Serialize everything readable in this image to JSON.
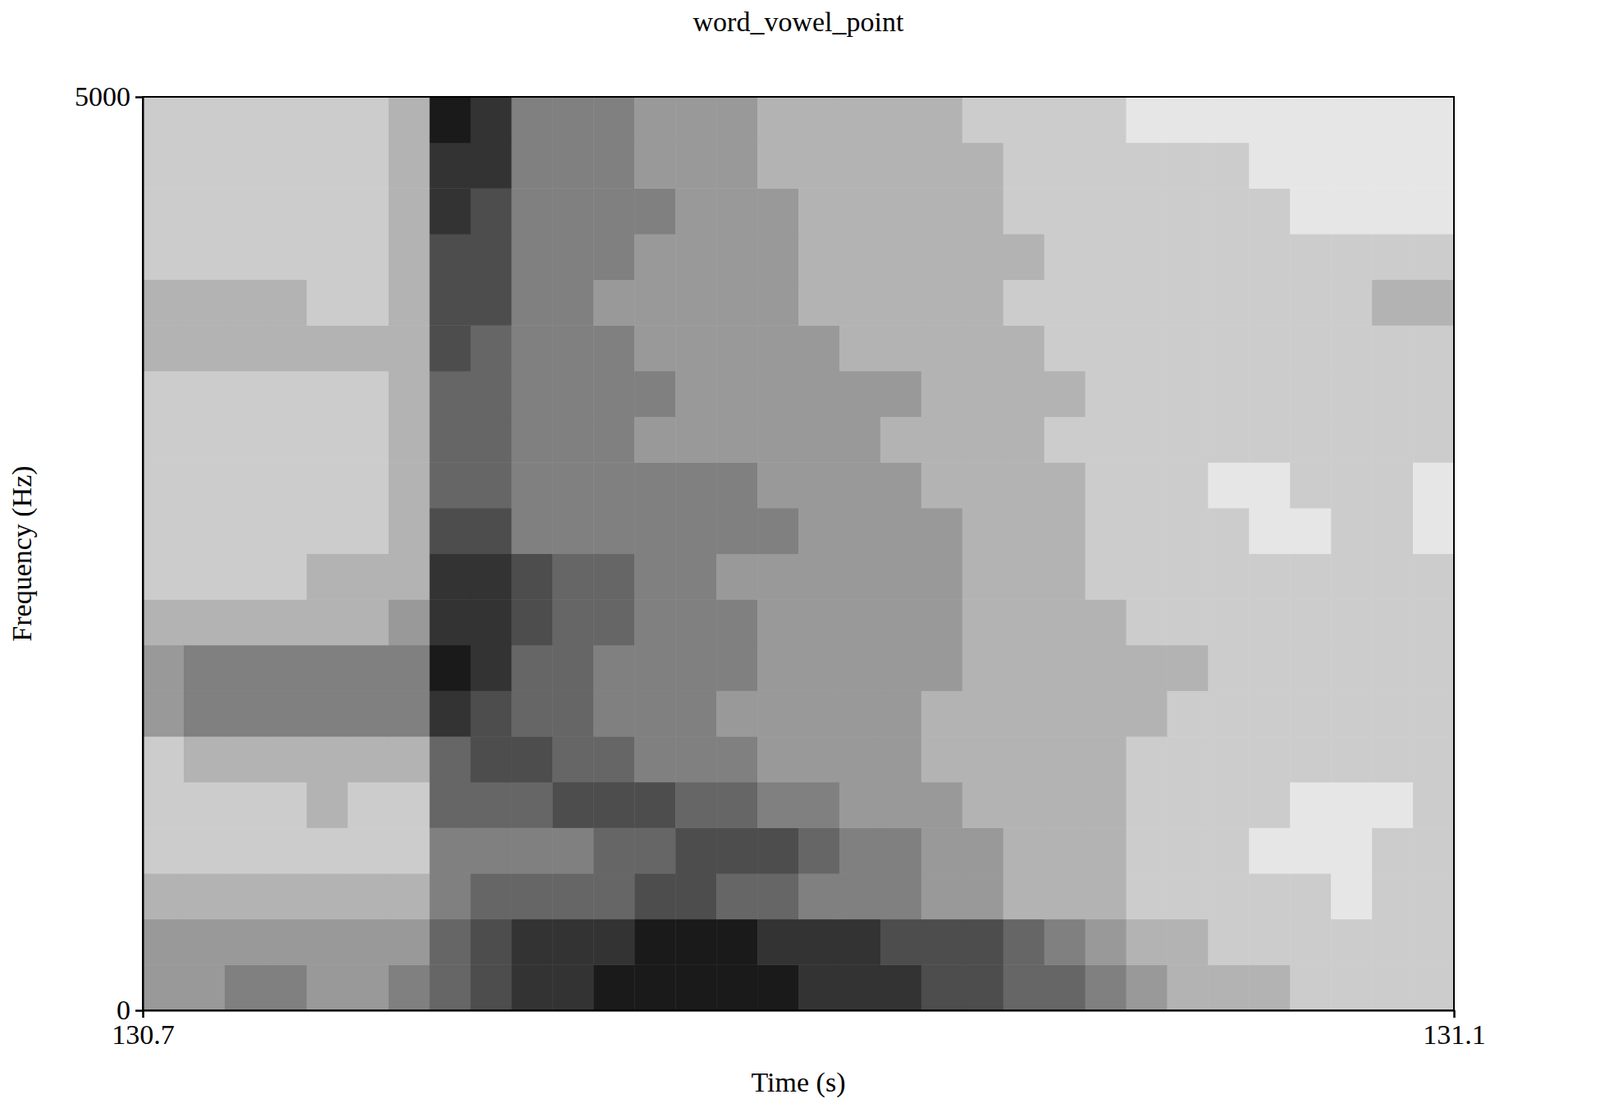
{
  "chart_data": {
    "type": "heatmap",
    "title": "word_vowel_point",
    "x_label": "Time (s)",
    "y_label": "Frequency (Hz)",
    "xlim": [
      130.7,
      131.1
    ],
    "ylim": [
      0,
      5000
    ],
    "xticks": [
      130.7,
      131.1
    ],
    "yticks": [
      0,
      5000
    ],
    "zlim": [
      0,
      10
    ],
    "x_bins": [
      130.7,
      130.7125,
      130.725,
      130.7375,
      130.75,
      130.7625,
      130.775,
      130.7875,
      130.8,
      130.8125,
      130.825,
      130.8375,
      130.85,
      130.8625,
      130.875,
      130.8875,
      130.9,
      130.9125,
      130.925,
      130.9375,
      130.95,
      130.9625,
      130.975,
      130.9875,
      131,
      131.0125,
      131.025,
      131.0375,
      131.05,
      131.0625,
      131.075,
      131.0875,
      131.1
    ],
    "y_bins": [
      0,
      250,
      500,
      750,
      1000,
      1250,
      1500,
      1750,
      2000,
      2250,
      2500,
      2750,
      3000,
      3250,
      3500,
      3750,
      4000,
      4250,
      4500,
      4750,
      5000
    ],
    "z": [
      [
        4,
        4,
        5,
        5,
        4,
        4,
        5,
        6,
        7,
        8,
        8,
        9,
        9,
        9,
        9,
        9,
        8,
        8,
        8,
        7,
        7,
        6,
        6,
        5,
        4,
        3,
        3,
        3,
        2,
        2,
        2,
        2
      ],
      [
        4,
        4,
        4,
        4,
        4,
        4,
        4,
        6,
        7,
        8,
        8,
        8,
        9,
        9,
        9,
        8,
        8,
        8,
        7,
        7,
        7,
        6,
        5,
        4,
        3,
        3,
        2,
        2,
        2,
        2,
        2,
        2
      ],
      [
        3,
        3,
        3,
        3,
        3,
        3,
        3,
        5,
        6,
        6,
        6,
        6,
        7,
        7,
        6,
        6,
        5,
        5,
        5,
        4,
        4,
        3,
        3,
        3,
        2,
        2,
        2,
        2,
        2,
        1,
        2,
        2
      ],
      [
        2,
        2,
        2,
        2,
        2,
        2,
        2,
        5,
        5,
        5,
        5,
        6,
        6,
        7,
        7,
        7,
        6,
        5,
        5,
        4,
        4,
        3,
        3,
        3,
        2,
        2,
        2,
        1,
        1,
        1,
        2,
        2
      ],
      [
        2,
        2,
        2,
        2,
        3,
        2,
        2,
        6,
        6,
        6,
        7,
        7,
        7,
        6,
        6,
        5,
        5,
        4,
        4,
        4,
        3,
        3,
        3,
        3,
        2,
        2,
        2,
        2,
        1,
        1,
        1,
        2
      ],
      [
        2,
        3,
        3,
        3,
        3,
        3,
        3,
        6,
        7,
        7,
        6,
        6,
        5,
        5,
        5,
        4,
        4,
        4,
        4,
        3,
        3,
        3,
        3,
        3,
        2,
        2,
        2,
        2,
        2,
        2,
        2,
        2
      ],
      [
        4,
        5,
        5,
        5,
        5,
        5,
        5,
        8,
        7,
        6,
        6,
        5,
        5,
        5,
        4,
        4,
        4,
        4,
        4,
        3,
        3,
        3,
        3,
        3,
        3,
        2,
        2,
        2,
        2,
        2,
        2,
        2
      ],
      [
        4,
        5,
        5,
        5,
        5,
        5,
        5,
        9,
        8,
        6,
        6,
        5,
        5,
        5,
        5,
        4,
        4,
        4,
        4,
        4,
        3,
        3,
        3,
        3,
        3,
        3,
        2,
        2,
        2,
        2,
        2,
        2
      ],
      [
        3,
        3,
        3,
        3,
        3,
        3,
        4,
        8,
        8,
        7,
        6,
        6,
        5,
        5,
        5,
        4,
        4,
        4,
        4,
        4,
        3,
        3,
        3,
        3,
        2,
        2,
        2,
        2,
        2,
        2,
        2,
        2
      ],
      [
        2,
        2,
        2,
        2,
        3,
        3,
        3,
        8,
        8,
        7,
        6,
        6,
        5,
        5,
        4,
        4,
        4,
        4,
        4,
        4,
        3,
        3,
        3,
        2,
        2,
        2,
        2,
        2,
        2,
        2,
        2,
        2
      ],
      [
        2,
        2,
        2,
        2,
        2,
        2,
        3,
        7,
        7,
        5,
        5,
        5,
        5,
        5,
        5,
        5,
        4,
        4,
        4,
        4,
        3,
        3,
        3,
        2,
        2,
        2,
        2,
        1,
        1,
        2,
        2,
        1
      ],
      [
        2,
        2,
        2,
        2,
        2,
        2,
        3,
        6,
        6,
        5,
        5,
        5,
        5,
        5,
        5,
        4,
        4,
        4,
        4,
        3,
        3,
        3,
        3,
        2,
        2,
        2,
        1,
        1,
        2,
        2,
        2,
        1
      ],
      [
        2,
        2,
        2,
        2,
        2,
        2,
        3,
        6,
        6,
        5,
        5,
        5,
        4,
        4,
        4,
        4,
        4,
        4,
        3,
        3,
        3,
        3,
        2,
        2,
        2,
        2,
        2,
        2,
        2,
        2,
        2,
        2
      ],
      [
        2,
        2,
        2,
        2,
        2,
        2,
        3,
        6,
        6,
        5,
        5,
        5,
        5,
        4,
        4,
        4,
        4,
        4,
        4,
        3,
        3,
        3,
        3,
        2,
        2,
        2,
        2,
        2,
        2,
        2,
        2,
        2
      ],
      [
        3,
        3,
        3,
        3,
        3,
        3,
        3,
        7,
        6,
        5,
        5,
        5,
        4,
        4,
        4,
        4,
        4,
        3,
        3,
        3,
        3,
        3,
        2,
        2,
        2,
        2,
        2,
        2,
        2,
        2,
        2,
        2
      ],
      [
        3,
        3,
        3,
        3,
        2,
        2,
        3,
        7,
        7,
        5,
        5,
        4,
        4,
        4,
        4,
        4,
        3,
        3,
        3,
        3,
        3,
        2,
        2,
        2,
        2,
        2,
        2,
        2,
        2,
        2,
        3,
        3
      ],
      [
        2,
        2,
        2,
        2,
        2,
        2,
        3,
        7,
        7,
        5,
        5,
        5,
        4,
        4,
        4,
        4,
        3,
        3,
        3,
        3,
        3,
        3,
        2,
        2,
        2,
        2,
        2,
        2,
        2,
        2,
        2,
        2
      ],
      [
        2,
        2,
        2,
        2,
        2,
        2,
        3,
        8,
        7,
        5,
        5,
        5,
        5,
        4,
        4,
        4,
        3,
        3,
        3,
        3,
        3,
        2,
        2,
        2,
        2,
        2,
        2,
        2,
        1,
        1,
        1,
        1
      ],
      [
        2,
        2,
        2,
        2,
        2,
        2,
        3,
        8,
        8,
        5,
        5,
        5,
        4,
        4,
        4,
        3,
        3,
        3,
        3,
        3,
        3,
        2,
        2,
        2,
        2,
        2,
        2,
        1,
        1,
        1,
        1,
        1
      ],
      [
        2,
        2,
        2,
        2,
        2,
        2,
        3,
        9,
        8,
        5,
        5,
        5,
        4,
        4,
        4,
        3,
        3,
        3,
        3,
        3,
        2,
        2,
        2,
        2,
        1,
        1,
        1,
        1,
        1,
        1,
        1,
        1
      ]
    ]
  }
}
